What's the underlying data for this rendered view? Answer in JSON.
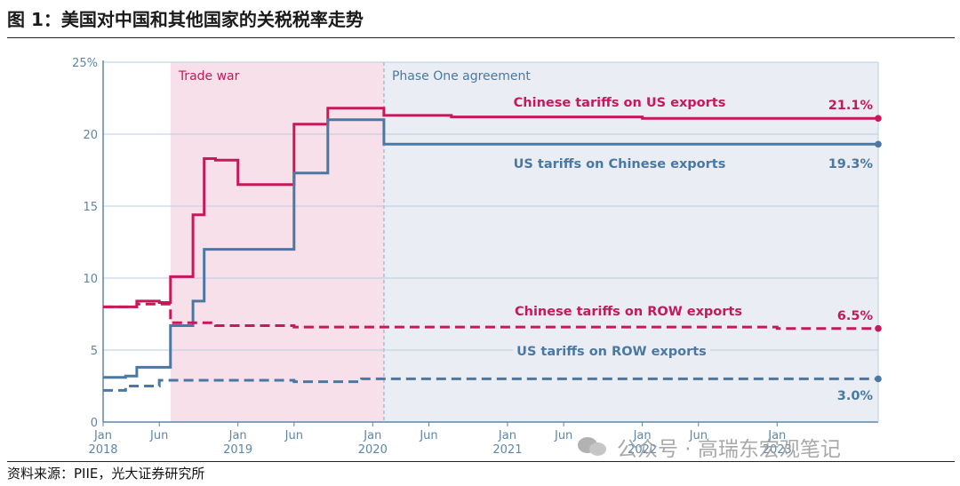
{
  "figure": {
    "title": "图 1：美国对中国和其他国家的关税税率走势",
    "source": "资料来源：PIIE，光大证券研究所",
    "watermark": "公众号 · 高瑞东宏观笔记"
  },
  "chart_data": {
    "type": "line",
    "ylim": [
      0,
      25
    ],
    "yticks": [
      "0",
      "5",
      "10",
      "15",
      "20",
      "25%"
    ],
    "ytick_values": [
      0,
      5,
      10,
      15,
      20,
      25
    ],
    "grid": true,
    "xlim": [
      "2018-01",
      "2023-10"
    ],
    "xticks": [
      {
        "month": "2018-01",
        "line1": "Jan",
        "line2": "2018"
      },
      {
        "month": "2018-06",
        "line1": "Jun",
        "line2": ""
      },
      {
        "month": "2019-01",
        "line1": "Jan",
        "line2": "2019"
      },
      {
        "month": "2019-06",
        "line1": "Jun",
        "line2": ""
      },
      {
        "month": "2020-01",
        "line1": "Jan",
        "line2": "2020"
      },
      {
        "month": "2020-06",
        "line1": "Jun",
        "line2": ""
      },
      {
        "month": "2021-01",
        "line1": "Jan",
        "line2": "2021"
      },
      {
        "month": "2021-06",
        "line1": "Jun",
        "line2": ""
      },
      {
        "month": "2022-01",
        "line1": "Jan",
        "line2": "2022"
      },
      {
        "month": "2022-06",
        "line1": "Jun",
        "line2": ""
      },
      {
        "month": "2023-01",
        "line1": "Jan",
        "line2": "2023"
      }
    ],
    "regions": [
      {
        "label": "Trade war",
        "from": "2018-07",
        "to": "2020-02",
        "color": "#f7e0e9"
      },
      {
        "label": "Phase One agreement",
        "from": "2020-02",
        "to": "2023-10",
        "color": "#eaeef4"
      }
    ],
    "colors": {
      "china": "#c8185a",
      "us": "#4a78a2"
    },
    "series": [
      {
        "name": "Chinese tariffs on US exports",
        "end_label": "21.1%",
        "color": "#c8185a",
        "style": "solid",
        "points": [
          [
            "2018-01",
            8.0
          ],
          [
            "2018-04",
            8.0
          ],
          [
            "2018-04",
            8.4
          ],
          [
            "2018-06",
            8.4
          ],
          [
            "2018-06",
            8.3
          ],
          [
            "2018-07",
            8.3
          ],
          [
            "2018-07",
            10.1
          ],
          [
            "2018-09",
            10.1
          ],
          [
            "2018-09",
            14.4
          ],
          [
            "2018-10",
            14.4
          ],
          [
            "2018-10",
            18.3
          ],
          [
            "2018-11",
            18.3
          ],
          [
            "2018-11",
            18.2
          ],
          [
            "2019-01",
            18.2
          ],
          [
            "2019-01",
            16.5
          ],
          [
            "2019-06",
            16.5
          ],
          [
            "2019-06",
            20.7
          ],
          [
            "2019-09",
            20.7
          ],
          [
            "2019-09",
            21.8
          ],
          [
            "2020-02",
            21.8
          ],
          [
            "2020-02",
            21.3
          ],
          [
            "2020-08",
            21.3
          ],
          [
            "2020-08",
            21.2
          ],
          [
            "2022-01",
            21.2
          ],
          [
            "2022-01",
            21.1
          ],
          [
            "2023-10",
            21.1
          ]
        ]
      },
      {
        "name": "US tariffs on Chinese exports",
        "end_label": "19.3%",
        "color": "#4a78a2",
        "style": "solid",
        "points": [
          [
            "2018-01",
            3.1
          ],
          [
            "2018-03",
            3.1
          ],
          [
            "2018-03",
            3.2
          ],
          [
            "2018-04",
            3.2
          ],
          [
            "2018-04",
            3.8
          ],
          [
            "2018-07",
            3.8
          ],
          [
            "2018-07",
            6.7
          ],
          [
            "2018-09",
            6.7
          ],
          [
            "2018-09",
            8.4
          ],
          [
            "2018-10",
            8.4
          ],
          [
            "2018-10",
            12.0
          ],
          [
            "2019-06",
            12.0
          ],
          [
            "2019-06",
            17.3
          ],
          [
            "2019-09",
            17.3
          ],
          [
            "2019-09",
            21.0
          ],
          [
            "2020-02",
            21.0
          ],
          [
            "2020-02",
            19.3
          ],
          [
            "2023-10",
            19.3
          ]
        ]
      },
      {
        "name": "Chinese tariffs on ROW exports",
        "end_label": "6.5%",
        "color": "#c8185a",
        "style": "dashed",
        "points": [
          [
            "2018-01",
            8.0
          ],
          [
            "2018-04",
            8.0
          ],
          [
            "2018-04",
            8.2
          ],
          [
            "2018-07",
            8.2
          ],
          [
            "2018-07",
            6.9
          ],
          [
            "2018-11",
            6.9
          ],
          [
            "2018-11",
            6.7
          ],
          [
            "2019-06",
            6.7
          ],
          [
            "2019-06",
            6.6
          ],
          [
            "2023-01",
            6.6
          ],
          [
            "2023-01",
            6.5
          ],
          [
            "2023-10",
            6.5
          ]
        ]
      },
      {
        "name": "US tariffs on ROW exports",
        "end_label": "3.0%",
        "color": "#4a78a2",
        "style": "dashed",
        "points": [
          [
            "2018-01",
            2.2
          ],
          [
            "2018-03",
            2.2
          ],
          [
            "2018-03",
            2.5
          ],
          [
            "2018-06",
            2.5
          ],
          [
            "2018-06",
            2.9
          ],
          [
            "2019-06",
            2.9
          ],
          [
            "2019-06",
            2.8
          ],
          [
            "2019-12",
            2.8
          ],
          [
            "2019-12",
            3.0
          ],
          [
            "2023-10",
            3.0
          ]
        ]
      }
    ]
  }
}
